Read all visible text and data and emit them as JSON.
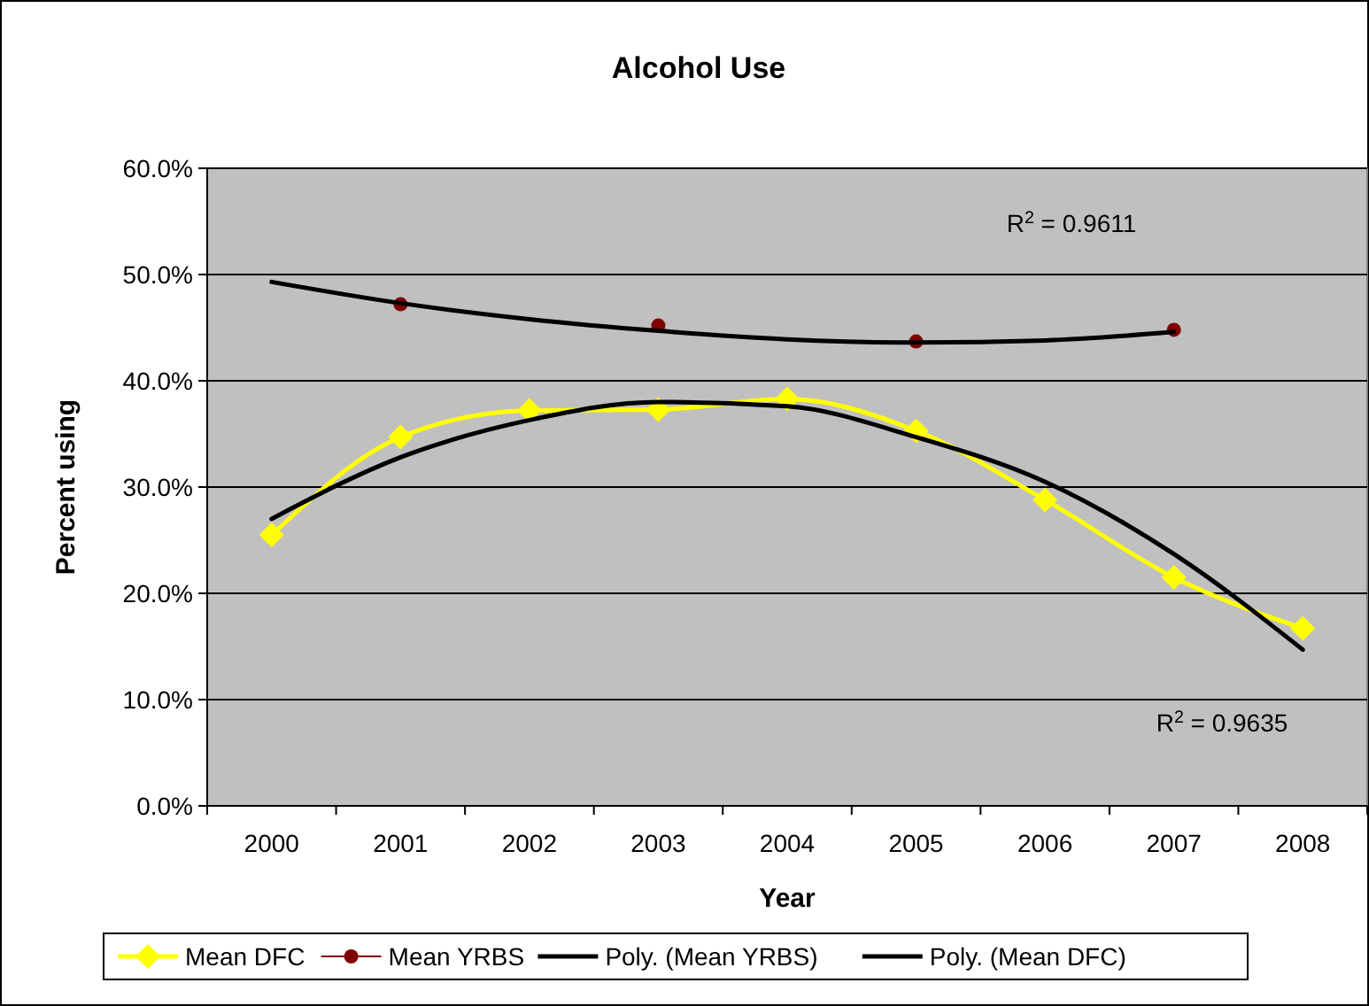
{
  "chart_data": {
    "type": "line",
    "title": "Alcohol Use",
    "xlabel": "Year",
    "ylabel": "Percent using",
    "categories": [
      "2000",
      "2001",
      "2002",
      "2003",
      "2004",
      "2005",
      "2006",
      "2007",
      "2008"
    ],
    "series": [
      {
        "name": "Mean DFC",
        "color": "#ffff00",
        "marker": "diamond",
        "values": [
          25.5,
          34.7,
          37.2,
          37.3,
          38.3,
          35.3,
          28.8,
          21.5,
          16.7
        ]
      },
      {
        "name": "Mean YRBS",
        "type": "scatter",
        "color": "#800000",
        "marker": "circle",
        "values": [
          null,
          47.2,
          null,
          45.2,
          null,
          43.7,
          null,
          44.8,
          null
        ]
      },
      {
        "name": "Poly. (Mean YRBS)",
        "color": "#000000",
        "values": [
          49.3,
          47.3,
          45.8,
          44.7,
          43.9,
          43.6,
          43.8,
          44.6,
          null
        ]
      },
      {
        "name": "Poly. (Mean DFC)",
        "color": "#000000",
        "values": [
          27.0,
          32.8,
          36.3,
          38.0,
          37.6,
          34.7,
          30.5,
          23.7,
          14.7
        ]
      }
    ],
    "ylim": [
      0,
      60
    ],
    "yticks": [
      {
        "value": 0,
        "label": "0.0%"
      },
      {
        "value": 10,
        "label": "10.0%"
      },
      {
        "value": 20,
        "label": "20.0%"
      },
      {
        "value": 30,
        "label": "30.0%"
      },
      {
        "value": 40,
        "label": "40.0%"
      },
      {
        "value": 50,
        "label": "50.0%"
      },
      {
        "value": 60,
        "label": "60.0%"
      }
    ],
    "grid": "y",
    "legend": "bottom",
    "annotations": [
      "R$^{2}$ = 0.9611",
      "R$^{2}$ = 0.9635"
    ]
  }
}
